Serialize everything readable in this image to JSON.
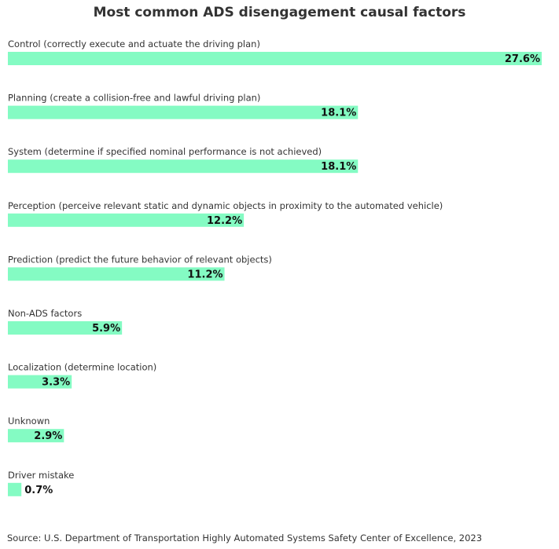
{
  "chart_data": {
    "type": "bar",
    "orientation": "horizontal",
    "title": "Most common ADS disengagement causal factors",
    "categories": [
      "Control (correctly execute and actuate the driving plan)",
      "Planning (create a collision-free and lawful driving plan)",
      "System (determine if specified nominal performance is not achieved)",
      "Perception (perceive relevant static and dynamic objects in proximity to the automated vehicle)",
      "Prediction (predict the future behavior of relevant objects)",
      "Non-ADS factors",
      "Localization (determine location)",
      "Unknown",
      "Driver mistake"
    ],
    "values": [
      27.6,
      18.1,
      18.1,
      12.2,
      11.2,
      5.9,
      3.3,
      2.9,
      0.7
    ],
    "value_labels": [
      "27.6%",
      "18.1%",
      "18.1%",
      "12.2%",
      "11.2%",
      "5.9%",
      "3.3%",
      "2.9%",
      "0.7%"
    ],
    "unit": "%",
    "xlim": [
      0,
      27.6
    ],
    "grid": false,
    "legend": "none",
    "bar_color": "#84FBC3",
    "source": "Source: U.S. Department of Transportation Highly Automated Systems Safety Center of Excellence, 2023"
  }
}
